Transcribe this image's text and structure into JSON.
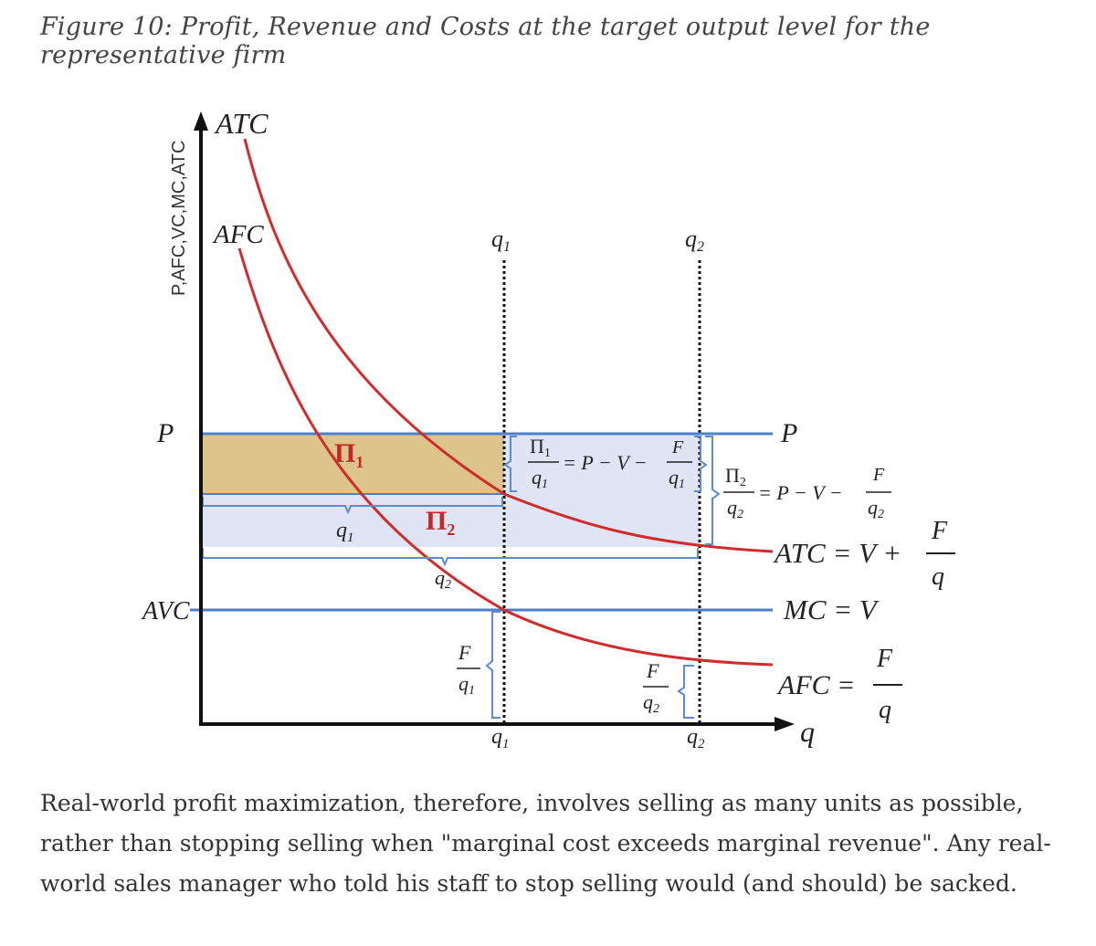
{
  "caption": "Figure 10: Profit, Revenue and Costs at the target output level for the representative firm",
  "diagram": {
    "y_axis_label": "P,AFC,VC,MC,ATC",
    "x_axis_label": "q",
    "curve_labels": {
      "atc_top": "ATC",
      "afc_top": "AFC"
    },
    "levels": {
      "p_left": "P",
      "p_right": "P",
      "avc_left": "AVC"
    },
    "quantities": {
      "q1_top": "q",
      "q1_sub": "1",
      "q2_top": "q",
      "q2_sub": "2"
    },
    "regions": {
      "pi1": "Π",
      "pi1_sub": "1",
      "pi2": "Π",
      "pi2_sub": "2"
    },
    "equations": {
      "pi1_num": "Π",
      "pi1_num_sub": "1",
      "pi1_den": "q",
      "pi1_den_sub": "1",
      "pi1_rhs": "= P − V −",
      "pi1_f_num": "F",
      "pi1_f_den": "q",
      "pi1_f_den_sub": "1",
      "pi2_num": "Π",
      "pi2_num_sub": "2",
      "pi2_den": "q",
      "pi2_den_sub": "2",
      "pi2_rhs": "= P − V −",
      "pi2_f_num": "F",
      "pi2_f_den": "q",
      "pi2_f_den_sub": "2",
      "atc_lhs": "ATC = V +",
      "atc_f_num": "F",
      "atc_f_den": "q",
      "mc": "MC = V",
      "afc_lhs": "AFC =",
      "afc_f_num": "F",
      "afc_f_den": "q",
      "afc1_num": "F",
      "afc1_den": "q",
      "afc1_sub": "1",
      "afc2_num": "F",
      "afc2_den": "q",
      "afc2_sub": "2"
    },
    "colors": {
      "curve": "#d22b2b",
      "horizontal": "#4f7fc8",
      "brace": "#5b8bd0",
      "profit1_fill": "#ddc48a",
      "profit2_fill": "#dfe5f5",
      "axis": "#111111"
    }
  },
  "paragraph": [
    "Real-world profit maximization, therefore, involves selling as many units as possible,",
    "rather than stopping selling when \"marginal cost exceeds marginal revenue\". Any real-",
    "world sales manager who told his staff to stop selling would (and should) be sacked."
  ]
}
